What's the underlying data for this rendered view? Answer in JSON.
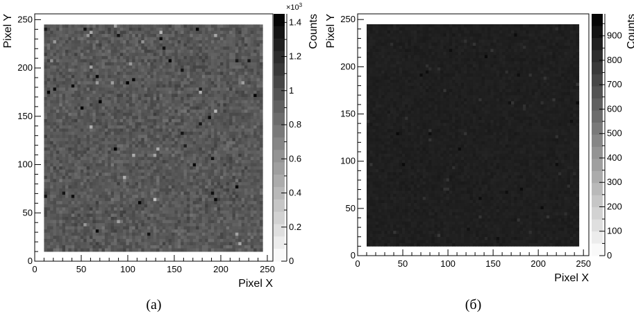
{
  "chart_data": [
    {
      "type": "heatmap",
      "xlabel": "Pixel X",
      "ylabel": "Pixel Y",
      "colorbar_label": "Counts",
      "colorbar_exponent_label": "×10",
      "colorbar_exponent_power": "3",
      "xlim": [
        0,
        256
      ],
      "ylim": [
        0,
        256
      ],
      "x_ticks": [
        0,
        50,
        100,
        150,
        200,
        250
      ],
      "y_ticks": [
        0,
        50,
        100,
        150,
        200,
        250
      ],
      "data_extent": {
        "x": [
          10,
          245
        ],
        "y": [
          10,
          245
        ]
      },
      "zlim": [
        0,
        1.45
      ],
      "z_ticks": [
        0,
        0.2,
        0.4,
        0.6,
        0.8,
        1,
        1.2,
        1.4
      ],
      "z_tick_labels": [
        "0",
        "0.2",
        "0.4",
        "0.6",
        "0.8",
        "1",
        "1.2",
        "1.4"
      ],
      "typical_value": 0.95,
      "noise_spread": 0.18,
      "colormap": "grayscale",
      "caption": "(a)"
    },
    {
      "type": "heatmap",
      "xlabel": "Pixel X",
      "ylabel": "Pixel Y",
      "colorbar_label": "Counts",
      "xlim": [
        0,
        256
      ],
      "ylim": [
        0,
        256
      ],
      "x_ticks": [
        0,
        50,
        100,
        150,
        200,
        250
      ],
      "y_ticks": [
        0,
        50,
        100,
        150,
        200,
        250
      ],
      "data_extent": {
        "x": [
          10,
          245
        ],
        "y": [
          10,
          245
        ]
      },
      "zlim": [
        0,
        990
      ],
      "z_ticks": [
        0,
        100,
        200,
        300,
        400,
        500,
        600,
        700,
        800,
        900
      ],
      "z_tick_labels": [
        "0",
        "100",
        "200",
        "300",
        "400",
        "500",
        "600",
        "700",
        "800",
        "900"
      ],
      "typical_value": 870,
      "noise_spread": 30,
      "colormap": "grayscale",
      "caption": "(б)"
    }
  ]
}
